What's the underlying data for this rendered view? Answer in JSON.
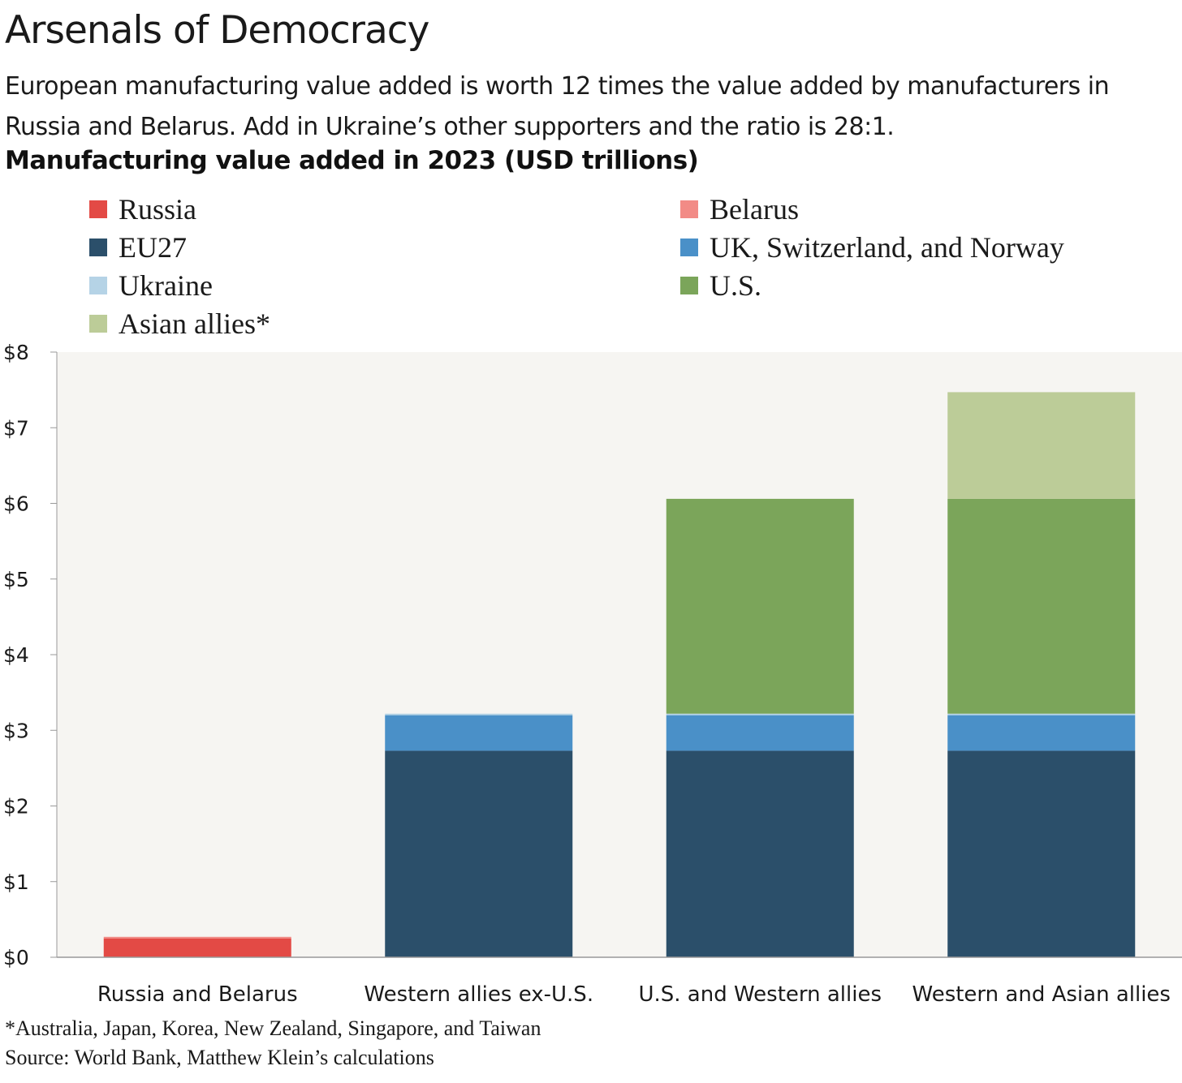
{
  "title": "Arsenals of Democracy",
  "subtitle": "European manufacturing value added is worth 12 times the value added by manufacturers in Russia and Belarus. Add in Ukraine’s other supporters and the ratio is 28:1.",
  "footnotes": {
    "asterisk": "*Australia, Japan, Korea, New Zealand, Singapore, and Taiwan",
    "source": "Source: World Bank, Matthew Klein’s calculations"
  },
  "chart_data": {
    "type": "bar",
    "stacked": true,
    "title": "Manufacturing value added in 2023 (USD trillions)",
    "xlabel": "",
    "ylabel": "",
    "ylim": [
      0,
      8
    ],
    "yticks": [
      {
        "value": 0,
        "label": "$0"
      },
      {
        "value": 1,
        "label": "$1"
      },
      {
        "value": 2,
        "label": "$2"
      },
      {
        "value": 3,
        "label": "$3"
      },
      {
        "value": 4,
        "label": "$4"
      },
      {
        "value": 5,
        "label": "$5"
      },
      {
        "value": 6,
        "label": "$6"
      },
      {
        "value": 7,
        "label": "$7"
      },
      {
        "value": 8,
        "label": "$8"
      }
    ],
    "grid": false,
    "legend_position": "top",
    "categories": [
      "Russia and Belarus",
      "Western allies ex-U.S.",
      "U.S. and Western allies",
      "Western and Asian allies"
    ],
    "series": [
      {
        "name": "Russia",
        "color": "#e34a45",
        "values": [
          0.25,
          0,
          0,
          0
        ]
      },
      {
        "name": "Belarus",
        "color": "#f28b86",
        "values": [
          0.02,
          0,
          0,
          0
        ]
      },
      {
        "name": "EU27",
        "color": "#2b4f6a",
        "values": [
          0,
          2.73,
          2.73,
          2.73
        ]
      },
      {
        "name": "UK, Switzerland, and Norway",
        "color": "#4a90c8",
        "values": [
          0,
          0.47,
          0.47,
          0.47
        ]
      },
      {
        "name": "Ukraine",
        "color": "#b5d3e6",
        "values": [
          0,
          0.02,
          0.02,
          0.02
        ]
      },
      {
        "name": "U.S.",
        "color": "#7ba55a",
        "values": [
          0,
          0,
          2.84,
          2.84
        ]
      },
      {
        "name": "Asian allies*",
        "color": "#bccc98",
        "values": [
          0,
          0,
          0,
          1.41
        ]
      }
    ],
    "colors": {
      "plot_background": "#f6f5f2",
      "axis": "#999999"
    }
  }
}
